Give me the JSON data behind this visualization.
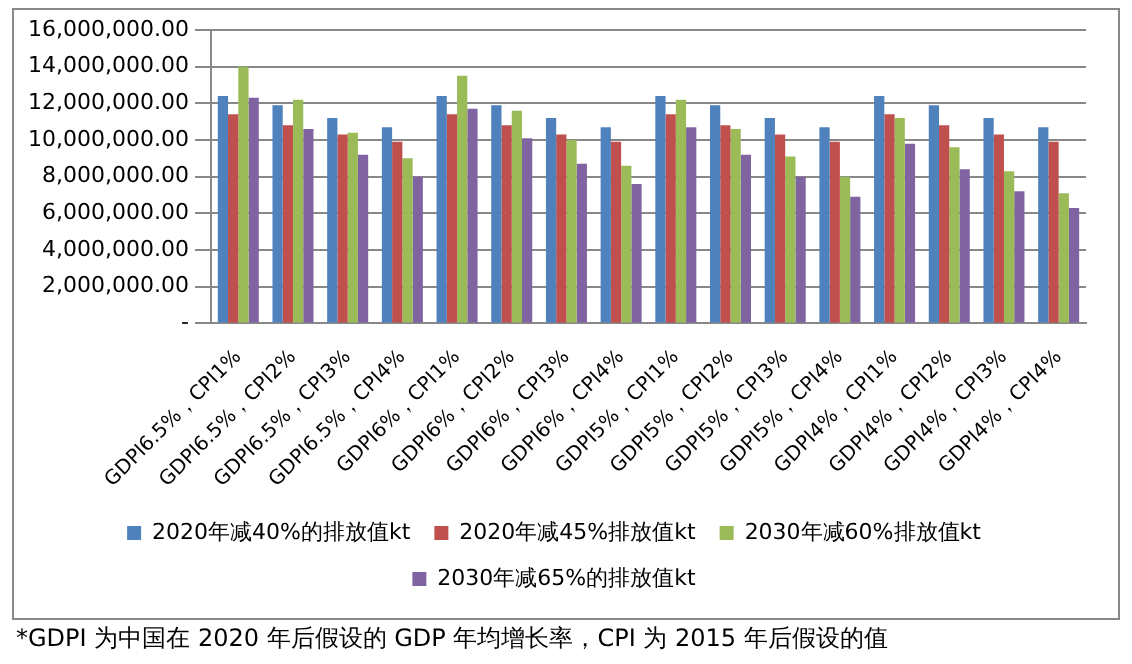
{
  "chart_data": {
    "type": "bar",
    "categories": [
      "GDPI6.5%，CPI1%",
      "GDPI6.5%，CPI2%",
      "GDPI6.5%，CPI3%",
      "GDPI6.5%，CPI4%",
      "GDPI6%，CPI1%",
      "GDPI6%，CPI2%",
      "GDPI6%，CPI3%",
      "GDPI6%，CPI4%",
      "GDPI5%，CPI1%",
      "GDPI5%，CPI2%",
      "GDPI5%，CPI3%",
      "GDPI5%，CPI4%",
      "GDPI4%，CPI1%",
      "GDPI4%，CPI2%",
      "GDPI4%，CPI3%",
      "GDPI4%，CPI4%"
    ],
    "series": [
      {
        "name": "2020年减40%的排放值kt",
        "color": "#4f81bd",
        "values": [
          12400000,
          11900000,
          11200000,
          10700000,
          12400000,
          11900000,
          11200000,
          10700000,
          12400000,
          11900000,
          11200000,
          10700000,
          12400000,
          11900000,
          11200000,
          10700000
        ]
      },
      {
        "name": "2020年减45%排放值kt",
        "color": "#c0504d",
        "values": [
          11400000,
          10800000,
          10300000,
          9900000,
          11400000,
          10800000,
          10300000,
          9900000,
          11400000,
          10800000,
          10300000,
          9900000,
          11400000,
          10800000,
          10300000,
          9900000
        ]
      },
      {
        "name": "2030年减60%排放值kt",
        "color": "#9bbb59",
        "values": [
          14000000,
          12200000,
          10400000,
          9000000,
          13500000,
          11600000,
          10000000,
          8600000,
          12200000,
          10600000,
          9100000,
          8000000,
          11200000,
          9600000,
          8300000,
          7100000
        ]
      },
      {
        "name": "2030年减65%的排放值kt",
        "color": "#8064a2",
        "values": [
          12300000,
          10600000,
          9200000,
          8000000,
          11700000,
          10100000,
          8700000,
          7600000,
          10700000,
          9200000,
          8000000,
          6900000,
          9800000,
          8400000,
          7200000,
          6300000
        ]
      }
    ],
    "ylim": [
      0,
      16000000
    ],
    "yticks": [
      {
        "value": 0,
        "label": "-"
      },
      {
        "value": 2000000,
        "label": "2,000,000.00"
      },
      {
        "value": 4000000,
        "label": "4,000,000.00"
      },
      {
        "value": 6000000,
        "label": "6,000,000.00"
      },
      {
        "value": 8000000,
        "label": "8,000,000.00"
      },
      {
        "value": 10000000,
        "label": "10,000,000.00"
      },
      {
        "value": 12000000,
        "label": "12,000,000.00"
      },
      {
        "value": 14000000,
        "label": "14,000,000.00"
      },
      {
        "value": 16000000,
        "label": "16,000,000.00"
      }
    ],
    "grid": "y",
    "legend": "bottom",
    "annotations": [
      "*GDPI 为中国在 2020 年后假设的 GDP 年均增长率，CPI 为 2015 年后假设的值"
    ]
  }
}
